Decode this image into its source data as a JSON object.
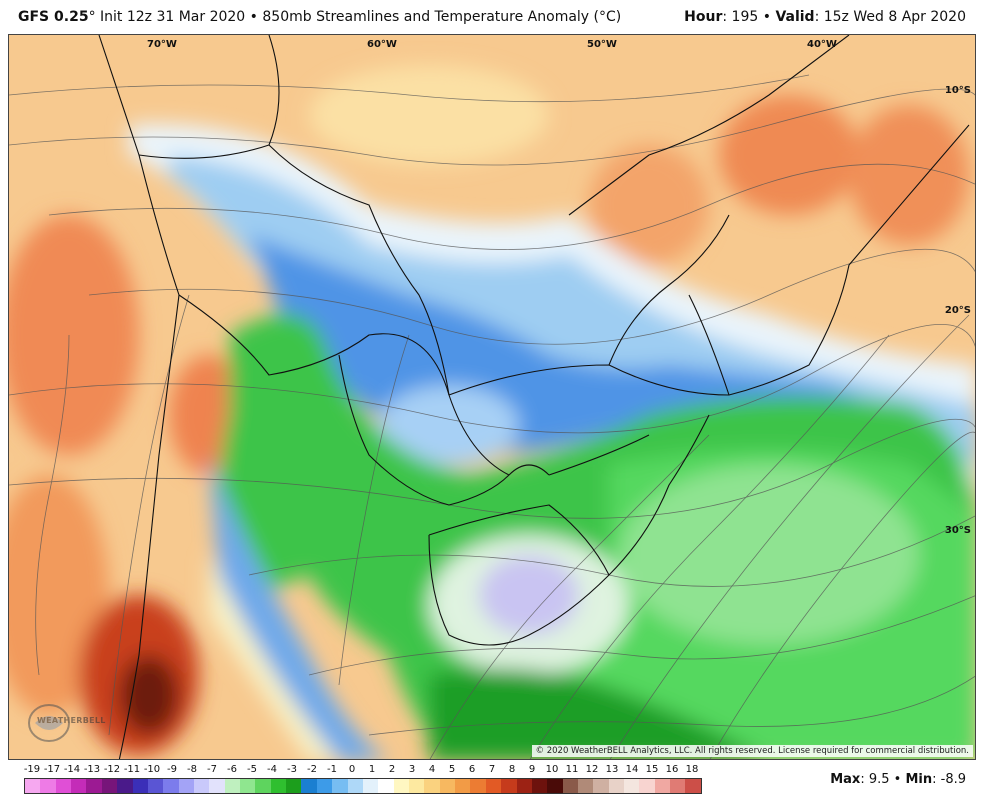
{
  "header": {
    "model": "GFS 0.25",
    "degree": "°",
    "init": "Init 12z 31 Mar 2020",
    "bullet": "•",
    "product": "850mb Streamlines and Temperature Anomaly (°C)",
    "hour_label": "Hour",
    "hour_value": ": 195",
    "valid_label": "Valid",
    "valid_value": ": 15z Wed 8 Apr 2020"
  },
  "map": {
    "longitude_labels": [
      "70°W",
      "60°W",
      "50°W",
      "40°W"
    ],
    "latitude_labels": [
      "10°S",
      "20°S",
      "30°S"
    ],
    "copyright": "© 2020 WeatherBELL Analytics, LLC. All rights reserved. License required for commercial distribution.",
    "logo_text": "WEATHERBELL",
    "logo_icon": "weatherbell-logo-icon"
  },
  "colorbar": {
    "labels": [
      "-19",
      "-17",
      "-14",
      "-13",
      "-12",
      "-11",
      "-10",
      "-9",
      "-8",
      "-7",
      "-6",
      "-5",
      "-4",
      "-3",
      "-2",
      "-1",
      "0",
      "1",
      "2",
      "3",
      "4",
      "5",
      "6",
      "7",
      "8",
      "9",
      "10",
      "11",
      "12",
      "13",
      "14",
      "15",
      "16",
      "18"
    ],
    "colors": [
      "#f6a8f0",
      "#ee7be6",
      "#e04fd6",
      "#c42cb8",
      "#9c1a93",
      "#77157a",
      "#4a1a8a",
      "#3b2fb8",
      "#5a55d4",
      "#7c7cec",
      "#a3a3f6",
      "#c9c9fb",
      "#e2e2fc",
      "#bff0bf",
      "#8fe68f",
      "#5ed45e",
      "#2fbf2f",
      "#1c9e1c",
      "#1b7fd1",
      "#3d9be8",
      "#77bdf2",
      "#aed8f8",
      "#e3f1fb",
      "#ffffff",
      "#fff7c2",
      "#fde9a0",
      "#fad27f",
      "#f7b860",
      "#f29b46",
      "#ec7c33",
      "#e25a25",
      "#c63b1c",
      "#9c2214",
      "#6d120d",
      "#4a0b08",
      "#8a5a4a",
      "#b08a78",
      "#cfb0a2",
      "#e8d2c8",
      "#f4e6df",
      "#f8d4d0",
      "#f0a8a2",
      "#e07b74",
      "#cc4f48"
    ]
  },
  "stats": {
    "max_label": "Max",
    "max_value": ": 9.5",
    "sep": " • ",
    "min_label": "Min",
    "min_value": ": -8.9"
  }
}
